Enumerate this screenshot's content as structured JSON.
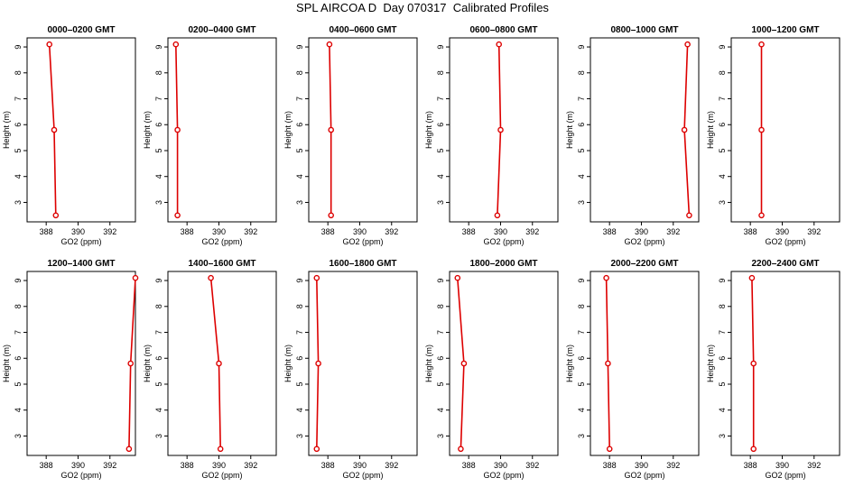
{
  "page": {
    "title": "SPL AIRCOA D  Day 070317  Calibrated Profiles"
  },
  "style": {
    "line_color": "#dd0000",
    "marker": "open-circle",
    "axis_color": "#000000"
  },
  "axes_common": {
    "xlabel": "GO2 (ppm)",
    "ylabel": "Height (m)",
    "xlim": [
      386.8,
      393.6
    ],
    "ylim": [
      2.25,
      9.35
    ],
    "xticks": [
      388,
      390,
      392
    ],
    "yticks": [
      3,
      4,
      5,
      6,
      7,
      8,
      9
    ]
  },
  "chart_data": [
    {
      "type": "line",
      "title": "0000–0200 GMT",
      "xlabel": "GO2 (ppm)",
      "ylabel": "Height (m)",
      "series": [
        {
          "x": [
            388.6,
            388.5,
            388.2
          ],
          "y": [
            2.5,
            5.8,
            9.1
          ]
        }
      ]
    },
    {
      "type": "line",
      "title": "0200–0400 GMT",
      "xlabel": "GO2 (ppm)",
      "ylabel": "Height (m)",
      "series": [
        {
          "x": [
            387.4,
            387.4,
            387.3
          ],
          "y": [
            2.5,
            5.8,
            9.1
          ]
        }
      ]
    },
    {
      "type": "line",
      "title": "0400–0600 GMT",
      "xlabel": "GO2 (ppm)",
      "ylabel": "Height (m)",
      "series": [
        {
          "x": [
            388.2,
            388.2,
            388.1
          ],
          "y": [
            2.5,
            5.8,
            9.1
          ]
        }
      ]
    },
    {
      "type": "line",
      "title": "0600–0800 GMT",
      "xlabel": "GO2 (ppm)",
      "ylabel": "Height (m)",
      "series": [
        {
          "x": [
            389.8,
            390.0,
            389.9
          ],
          "y": [
            2.5,
            5.8,
            9.1
          ]
        }
      ]
    },
    {
      "type": "line",
      "title": "0800–1000 GMT",
      "xlabel": "GO2 (ppm)",
      "ylabel": "Height (m)",
      "series": [
        {
          "x": [
            393.0,
            392.7,
            392.9
          ],
          "y": [
            2.5,
            5.8,
            9.1
          ]
        }
      ]
    },
    {
      "type": "line",
      "title": "1000–1200 GMT",
      "xlabel": "GO2 (ppm)",
      "ylabel": "Height (m)",
      "series": [
        {
          "x": [
            388.7,
            388.7,
            388.7
          ],
          "y": [
            2.5,
            5.8,
            9.1
          ]
        }
      ]
    },
    {
      "type": "line",
      "title": "1200–1400 GMT",
      "xlabel": "GO2 (ppm)",
      "ylabel": "Height (m)",
      "series": [
        {
          "x": [
            393.2,
            393.3,
            393.6
          ],
          "y": [
            2.5,
            5.8,
            9.1
          ]
        }
      ]
    },
    {
      "type": "line",
      "title": "1400–1600 GMT",
      "xlabel": "GO2 (ppm)",
      "ylabel": "Height (m)",
      "series": [
        {
          "x": [
            390.1,
            390.0,
            389.5
          ],
          "y": [
            2.5,
            5.8,
            9.1
          ]
        }
      ]
    },
    {
      "type": "line",
      "title": "1600–1800 GMT",
      "xlabel": "GO2 (ppm)",
      "ylabel": "Height (m)",
      "series": [
        {
          "x": [
            387.3,
            387.4,
            387.3
          ],
          "y": [
            2.5,
            5.8,
            9.1
          ]
        }
      ]
    },
    {
      "type": "line",
      "title": "1800–2000 GMT",
      "xlabel": "GO2 (ppm)",
      "ylabel": "Height (m)",
      "series": [
        {
          "x": [
            387.5,
            387.7,
            387.3
          ],
          "y": [
            2.5,
            5.8,
            9.1
          ]
        }
      ]
    },
    {
      "type": "line",
      "title": "2000–2200 GMT",
      "xlabel": "GO2 (ppm)",
      "ylabel": "Height (m)",
      "series": [
        {
          "x": [
            388.0,
            387.9,
            387.8
          ],
          "y": [
            2.5,
            5.8,
            9.1
          ]
        }
      ]
    },
    {
      "type": "line",
      "title": "2200–2400 GMT",
      "xlabel": "GO2 (ppm)",
      "ylabel": "Height (m)",
      "series": [
        {
          "x": [
            388.2,
            388.2,
            388.1
          ],
          "y": [
            2.5,
            5.8,
            9.1
          ]
        }
      ]
    }
  ]
}
